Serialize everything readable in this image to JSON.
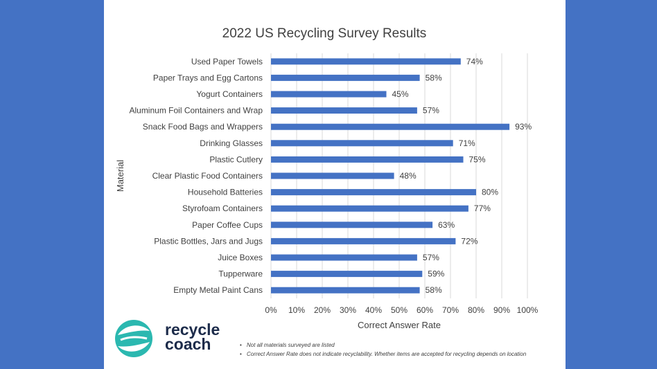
{
  "chart_data": {
    "type": "bar",
    "orientation": "horizontal",
    "title": "2022 US Recycling Survey Results",
    "xlabel": "Correct Answer Rate",
    "ylabel": "Material",
    "categories": [
      "Used Paper Towels",
      "Paper Trays and Egg Cartons",
      "Yogurt Containers",
      "Aluminum Foil Containers and Wrap",
      "Snack Food Bags and Wrappers",
      "Drinking Glasses",
      "Plastic Cutlery",
      "Clear Plastic Food Containers",
      "Household Batteries",
      "Styrofoam Containers",
      "Paper Coffee Cups",
      "Plastic Bottles, Jars and Jugs",
      "Juice Boxes",
      "Tupperware",
      "Empty Metal Paint Cans"
    ],
    "values": [
      74,
      58,
      45,
      57,
      93,
      71,
      75,
      48,
      80,
      77,
      63,
      72,
      57,
      59,
      58
    ],
    "value_labels": [
      "74%",
      "58%",
      "45%",
      "57%",
      "93%",
      "71%",
      "75%",
      "48%",
      "80%",
      "77%",
      "63%",
      "72%",
      "57%",
      "59%",
      "58%"
    ],
    "xlim": [
      0,
      100
    ],
    "xticks": [
      "0%",
      "10%",
      "20%",
      "30%",
      "40%",
      "50%",
      "60%",
      "70%",
      "80%",
      "90%",
      "100%"
    ],
    "grid": "vertical",
    "bar_color": "#4472c4"
  },
  "logo": {
    "line1": "recycle",
    "line2": "coach"
  },
  "notes": [
    "Not all materials surveyed are listed",
    "Correct Answer Rate does not indicate recyclability. Whether items are accepted for recycling depends on location"
  ],
  "colors": {
    "background": "#4472c4",
    "panel": "#ffffff",
    "logo_teal": "#2bb8b0"
  }
}
